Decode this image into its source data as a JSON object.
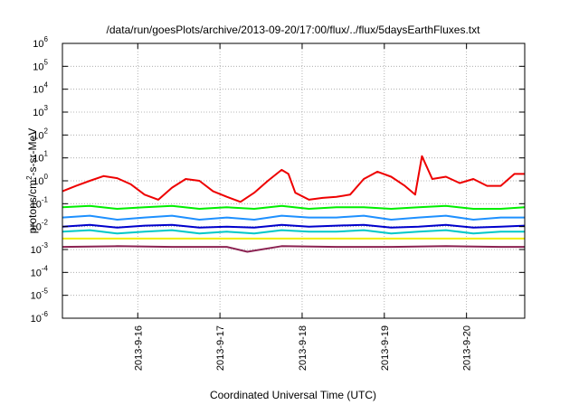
{
  "chart_data": {
    "type": "line",
    "title": "/data/run/goesPlots/archive/2013-09-20/17:00/flux/../flux/5daysEarthFluxes.txt",
    "xlabel": "Coordinated Universal Time (UTC)",
    "ylabel_prefix": "protons/cm",
    "ylabel_exp": "2",
    "ylabel_suffix": "-s-sr-MeV",
    "yscale": "log",
    "ylim": [
      1e-06,
      1000000.0
    ],
    "xlim": [
      "2013-09-15T02:00",
      "2013-09-20T17:00"
    ],
    "x_ticks": [
      {
        "date": "2013-09-16",
        "label": "2013-9-16"
      },
      {
        "date": "2013-09-17",
        "label": "2013-9-17"
      },
      {
        "date": "2013-09-18",
        "label": "2013-9-18"
      },
      {
        "date": "2013-09-19",
        "label": "2013-9-19"
      },
      {
        "date": "2013-09-20",
        "label": "2013-9-20"
      }
    ],
    "y_ticks": [
      {
        "value": 1e-06,
        "base": "10",
        "exp": "-6"
      },
      {
        "value": 1e-05,
        "base": "10",
        "exp": "-5"
      },
      {
        "value": 0.0001,
        "base": "10",
        "exp": "-4"
      },
      {
        "value": 0.001,
        "base": "10",
        "exp": "-3"
      },
      {
        "value": 0.01,
        "base": "10",
        "exp": "-2"
      },
      {
        "value": 0.1,
        "base": "10",
        "exp": "-1"
      },
      {
        "value": 1,
        "base": "10",
        "exp": "0"
      },
      {
        "value": 10,
        "base": "10",
        "exp": "1"
      },
      {
        "value": 100,
        "base": "10",
        "exp": "2"
      },
      {
        "value": 1000,
        "base": "10",
        "exp": "3"
      },
      {
        "value": 10000,
        "base": "10",
        "exp": "4"
      },
      {
        "value": 100000,
        "base": "10",
        "exp": "5"
      },
      {
        "value": 1000000,
        "base": "10",
        "exp": "6"
      }
    ],
    "grid": true,
    "legend": "none",
    "series": [
      {
        "color": "#ee0000",
        "x": [
          "2013-09-15T02:00",
          "2013-09-15T06:00",
          "2013-09-15T10:00",
          "2013-09-15T14:00",
          "2013-09-15T18:00",
          "2013-09-15T22:00",
          "2013-09-16T02:00",
          "2013-09-16T06:00",
          "2013-09-16T10:00",
          "2013-09-16T14:00",
          "2013-09-16T18:00",
          "2013-09-16T22:00",
          "2013-09-17T02:00",
          "2013-09-17T06:00",
          "2013-09-17T10:00",
          "2013-09-17T14:00",
          "2013-09-17T18:00",
          "2013-09-17T20:00",
          "2013-09-17T22:00",
          "2013-09-18T02:00",
          "2013-09-18T06:00",
          "2013-09-18T10:00",
          "2013-09-18T14:00",
          "2013-09-18T18:00",
          "2013-09-18T22:00",
          "2013-09-19T02:00",
          "2013-09-19T06:00",
          "2013-09-19T09:00",
          "2013-09-19T11:00",
          "2013-09-19T14:00",
          "2013-09-19T18:00",
          "2013-09-19T22:00",
          "2013-09-20T02:00",
          "2013-09-20T06:00",
          "2013-09-20T10:00",
          "2013-09-20T14:00",
          "2013-09-20T17:00"
        ],
        "y": [
          0.35,
          0.6,
          1.0,
          1.6,
          1.3,
          0.7,
          0.25,
          0.15,
          0.5,
          1.2,
          1.0,
          0.35,
          0.2,
          0.12,
          0.3,
          1.0,
          3.0,
          2.0,
          0.3,
          0.15,
          0.18,
          0.2,
          0.25,
          1.2,
          2.5,
          1.5,
          0.6,
          0.25,
          12,
          1.2,
          1.5,
          0.8,
          1.2,
          0.6,
          0.6,
          2.0,
          2.0
        ]
      },
      {
        "color": "#00ee00",
        "x": [
          "2013-09-15T02:00",
          "2013-09-15T10:00",
          "2013-09-15T18:00",
          "2013-09-16T02:00",
          "2013-09-16T10:00",
          "2013-09-16T18:00",
          "2013-09-17T02:00",
          "2013-09-17T10:00",
          "2013-09-17T18:00",
          "2013-09-18T02:00",
          "2013-09-18T10:00",
          "2013-09-18T18:00",
          "2013-09-19T02:00",
          "2013-09-19T10:00",
          "2013-09-19T18:00",
          "2013-09-20T02:00",
          "2013-09-20T10:00",
          "2013-09-20T17:00"
        ],
        "y": [
          0.07,
          0.08,
          0.06,
          0.07,
          0.08,
          0.06,
          0.07,
          0.06,
          0.08,
          0.06,
          0.07,
          0.07,
          0.06,
          0.07,
          0.08,
          0.06,
          0.06,
          0.07
        ]
      },
      {
        "color": "#1e90ff",
        "x": [
          "2013-09-15T02:00",
          "2013-09-15T10:00",
          "2013-09-15T18:00",
          "2013-09-16T02:00",
          "2013-09-16T10:00",
          "2013-09-16T18:00",
          "2013-09-17T02:00",
          "2013-09-17T10:00",
          "2013-09-17T18:00",
          "2013-09-18T02:00",
          "2013-09-18T10:00",
          "2013-09-18T18:00",
          "2013-09-19T02:00",
          "2013-09-19T10:00",
          "2013-09-19T18:00",
          "2013-09-20T02:00",
          "2013-09-20T10:00",
          "2013-09-20T17:00"
        ],
        "y": [
          0.025,
          0.03,
          0.02,
          0.025,
          0.03,
          0.02,
          0.025,
          0.02,
          0.03,
          0.025,
          0.025,
          0.03,
          0.02,
          0.025,
          0.03,
          0.02,
          0.025,
          0.025
        ]
      },
      {
        "color": "#00c8c8",
        "x": [
          "2013-09-15T02:00",
          "2013-09-15T10:00",
          "2013-09-15T18:00",
          "2013-09-16T02:00",
          "2013-09-16T10:00",
          "2013-09-16T18:00",
          "2013-09-17T02:00",
          "2013-09-17T10:00",
          "2013-09-17T18:00",
          "2013-09-18T02:00",
          "2013-09-18T10:00",
          "2013-09-18T18:00",
          "2013-09-19T02:00",
          "2013-09-19T10:00",
          "2013-09-19T18:00",
          "2013-09-20T02:00",
          "2013-09-20T10:00",
          "2013-09-20T17:00"
        ],
        "y": [
          0.006,
          0.007,
          0.005,
          0.006,
          0.007,
          0.005,
          0.006,
          0.005,
          0.007,
          0.006,
          0.006,
          0.007,
          0.005,
          0.006,
          0.007,
          0.005,
          0.006,
          0.006
        ]
      },
      {
        "color": "#0000cc",
        "x": [
          "2013-09-15T02:00",
          "2013-09-15T10:00",
          "2013-09-15T18:00",
          "2013-09-16T02:00",
          "2013-09-16T10:00",
          "2013-09-16T18:00",
          "2013-09-17T02:00",
          "2013-09-17T10:00",
          "2013-09-17T18:00",
          "2013-09-18T02:00",
          "2013-09-18T10:00",
          "2013-09-18T18:00",
          "2013-09-19T02:00",
          "2013-09-19T10:00",
          "2013-09-19T18:00",
          "2013-09-20T02:00",
          "2013-09-20T10:00",
          "2013-09-20T17:00"
        ],
        "y": [
          0.01,
          0.012,
          0.009,
          0.011,
          0.012,
          0.009,
          0.01,
          0.009,
          0.012,
          0.01,
          0.011,
          0.012,
          0.009,
          0.01,
          0.012,
          0.009,
          0.01,
          0.011
        ]
      },
      {
        "color": "#eeee00",
        "x": [
          "2013-09-15T02:00",
          "2013-09-15T18:00",
          "2013-09-16T10:00",
          "2013-09-17T02:00",
          "2013-09-17T18:00",
          "2013-09-18T10:00",
          "2013-09-19T02:00",
          "2013-09-19T18:00",
          "2013-09-20T10:00",
          "2013-09-20T17:00"
        ],
        "y": [
          0.003,
          0.003,
          0.003,
          0.003,
          0.003,
          0.003,
          0.003,
          0.003,
          0.003,
          0.003
        ]
      },
      {
        "color": "#8b2252",
        "x": [
          "2013-09-15T02:00",
          "2013-09-15T18:00",
          "2013-09-16T10:00",
          "2013-09-17T02:00",
          "2013-09-17T08:00",
          "2013-09-17T18:00",
          "2013-09-18T10:00",
          "2013-09-19T02:00",
          "2013-09-19T18:00",
          "2013-09-20T10:00",
          "2013-09-20T17:00"
        ],
        "y": [
          0.0013,
          0.0014,
          0.0013,
          0.0013,
          0.0008,
          0.0014,
          0.0013,
          0.0013,
          0.0014,
          0.0013,
          0.0013
        ]
      }
    ]
  }
}
